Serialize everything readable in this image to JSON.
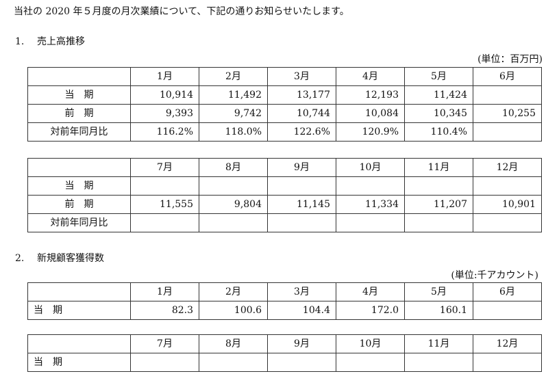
{
  "intro": "当社の 2020 年５月度の月次業績について、下記の通りお知らせいたします。",
  "section1": {
    "number": "1.",
    "title": "売上高推移",
    "unit": "(単位：百万円)",
    "table_a": {
      "months": [
        "1月",
        "2月",
        "3月",
        "4月",
        "5月",
        "6月"
      ],
      "rows": [
        {
          "label": "当　期",
          "values": [
            "10,914",
            "11,492",
            "13,177",
            "12,193",
            "11,424",
            ""
          ]
        },
        {
          "label": "前　期",
          "values": [
            "9,393",
            "9,742",
            "10,744",
            "10,084",
            "10,345",
            "10,255"
          ]
        },
        {
          "label": "対前年同月比",
          "values": [
            "116.2%",
            "118.0%",
            "122.6%",
            "120.9%",
            "110.4%",
            ""
          ]
        }
      ]
    },
    "table_b": {
      "months": [
        "7月",
        "8月",
        "9月",
        "10月",
        "11月",
        "12月"
      ],
      "rows": [
        {
          "label": "当　期",
          "values": [
            "",
            "",
            "",
            "",
            "",
            ""
          ]
        },
        {
          "label": "前　期",
          "values": [
            "11,555",
            "9,804",
            "11,145",
            "11,334",
            "11,207",
            "10,901"
          ]
        },
        {
          "label": "対前年同月比",
          "values": [
            "",
            "",
            "",
            "",
            "",
            ""
          ]
        }
      ]
    }
  },
  "section2": {
    "number": "2.",
    "title": "新規顧客獲得数",
    "unit": "(単位:千アカウント)",
    "table_a": {
      "months": [
        "1月",
        "2月",
        "3月",
        "4月",
        "5月",
        "6月"
      ],
      "rows": [
        {
          "label": "当　期",
          "values": [
            "82.3",
            "100.6",
            "104.4",
            "172.0",
            "160.1",
            ""
          ]
        }
      ]
    },
    "table_b": {
      "months": [
        "7月",
        "8月",
        "9月",
        "10月",
        "11月",
        "12月"
      ],
      "rows": [
        {
          "label": "当　期",
          "values": [
            "",
            "",
            "",
            "",
            "",
            ""
          ]
        }
      ]
    }
  }
}
